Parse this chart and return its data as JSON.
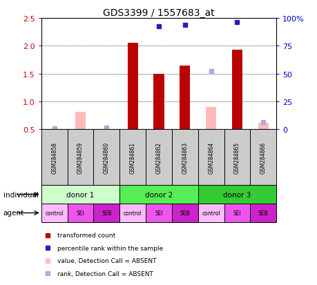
{
  "title": "GDS3399 / 1557683_at",
  "samples": [
    "GSM284858",
    "GSM284859",
    "GSM284860",
    "GSM284861",
    "GSM284862",
    "GSM284863",
    "GSM284864",
    "GSM284865",
    "GSM284866"
  ],
  "bar_values": [
    null,
    null,
    null,
    2.05,
    1.5,
    1.65,
    null,
    1.93,
    null
  ],
  "bar_absent": [
    null,
    0.82,
    null,
    2.05,
    null,
    null,
    0.9,
    null,
    0.62
  ],
  "dot_present": [
    null,
    null,
    null,
    null,
    2.35,
    2.37,
    null,
    2.42,
    null
  ],
  "dot_absent": [
    0.52,
    null,
    0.53,
    null,
    null,
    null,
    1.54,
    null,
    0.63
  ],
  "donors": [
    {
      "label": "donor 1",
      "start": 0,
      "end": 3,
      "color": "#ccffcc"
    },
    {
      "label": "donor 2",
      "start": 3,
      "end": 6,
      "color": "#55ee55"
    },
    {
      "label": "donor 3",
      "start": 6,
      "end": 9,
      "color": "#33cc33"
    }
  ],
  "agents": [
    "control",
    "SEI",
    "SEB",
    "control",
    "SEI",
    "SEB",
    "control",
    "SEI",
    "SEB"
  ],
  "agent_colors": [
    "#ffbbff",
    "#ee55ee",
    "#cc22cc",
    "#ffbbff",
    "#ee55ee",
    "#cc22cc",
    "#ffbbff",
    "#ee55ee",
    "#cc22cc"
  ],
  "ylim_left": [
    0.5,
    2.5
  ],
  "ylim_right": [
    0,
    100
  ],
  "left_ticks": [
    0.5,
    1.0,
    1.5,
    2.0,
    2.5
  ],
  "right_ticks": [
    0,
    25,
    50,
    75,
    100
  ],
  "bar_color_present": "#bb0000",
  "bar_color_absent": "#ffbbbb",
  "dot_color_present": "#2222bb",
  "dot_color_absent": "#aaaadd",
  "sample_box_color": "#cccccc",
  "ylabel_left_color": "#cc0000",
  "ylabel_right_color": "#0000cc",
  "bar_width": 0.4,
  "dot_size": 5
}
